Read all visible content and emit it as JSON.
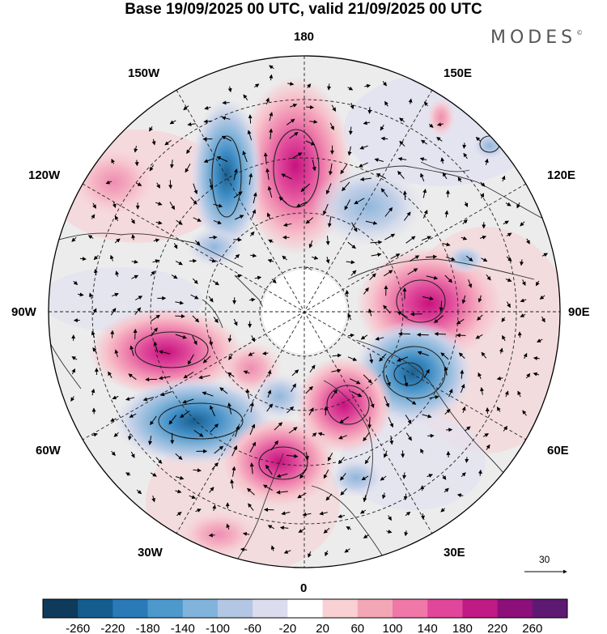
{
  "title": "Base 19/09/2025 00 UTC, valid 21/09/2025 00 UTC",
  "brand": "MODES",
  "brand_mark": "©",
  "longitude_labels": {
    "n180": "180",
    "w150": "150W",
    "e150": "150E",
    "w120": "120W",
    "e120": "120E",
    "w90": "90W",
    "e90": "90E",
    "w60": "60W",
    "e60": "60E",
    "w30": "30W",
    "e30": "30E",
    "s0": "0"
  },
  "wind_reference": {
    "value": "30"
  },
  "colorbar": {
    "colors": [
      "#0e3a5c",
      "#155d8e",
      "#2b7ab8",
      "#4d99cc",
      "#82b3da",
      "#b3c7e5",
      "#dcdcef",
      "#ffffff",
      "#f9d0d3",
      "#f3a7b6",
      "#ef78a8",
      "#e0469a",
      "#c01a84",
      "#8c0f7a",
      "#5e1a73"
    ],
    "labels": [
      "-260",
      "-220",
      "-180",
      "-140",
      "-100",
      "-60",
      "-20",
      "20",
      "60",
      "100",
      "140",
      "180",
      "220",
      "260"
    ]
  }
}
